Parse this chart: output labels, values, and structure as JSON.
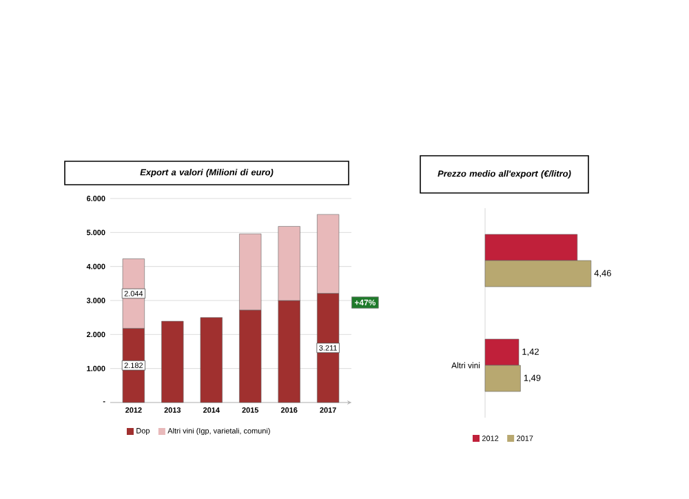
{
  "chart_data": [
    {
      "type": "bar",
      "stacked": true,
      "title": "Export a valori (Milioni di euro)",
      "categories": [
        "2012",
        "2013",
        "2014",
        "2015",
        "2016",
        "2017"
      ],
      "series": [
        {
          "name": "Dop",
          "color": "#a0302f",
          "values": [
            2182,
            2390,
            2500,
            2720,
            3000,
            3211
          ],
          "value_labels": [
            "2.182",
            null,
            null,
            null,
            null,
            "3.211"
          ]
        },
        {
          "name": "Altri vini (Igp, varietali, comuni)",
          "color": "#e8b9ba",
          "values": [
            2044,
            null,
            null,
            2240,
            2180,
            2320
          ],
          "value_labels": [
            "2.044",
            null,
            null,
            null,
            null,
            null
          ]
        }
      ],
      "ylim": [
        0,
        6000
      ],
      "yticks": [
        {
          "value": 0,
          "label": "-"
        },
        {
          "value": 1000,
          "label": "1.000"
        },
        {
          "value": 2000,
          "label": "2.000"
        },
        {
          "value": 3000,
          "label": "3.000"
        },
        {
          "value": 4000,
          "label": "4.000"
        },
        {
          "value": 5000,
          "label": "5.000"
        },
        {
          "value": 6000,
          "label": "6.000"
        }
      ],
      "grid": "y",
      "legend": "bottom",
      "annotations": [
        "+47%"
      ]
    },
    {
      "type": "bar",
      "orientation": "horizontal",
      "title": "Prezzo medio all'export (€/litro)",
      "categories": [
        null,
        "Altri vini"
      ],
      "series": [
        {
          "name": "2012",
          "color": "#c0203a",
          "values": [
            3.88,
            1.42
          ],
          "value_labels": [
            null,
            "1,42"
          ]
        },
        {
          "name": "2017",
          "color": "#b8a870",
          "values": [
            4.46,
            1.49
          ],
          "value_labels": [
            "4,46",
            "1,49"
          ]
        }
      ],
      "legend": "bottom"
    }
  ]
}
